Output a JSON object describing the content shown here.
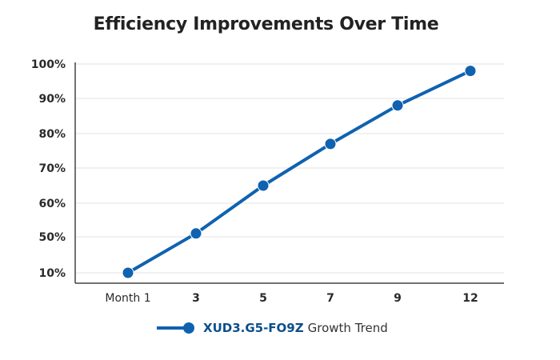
{
  "chart_data": {
    "type": "line",
    "title": "Efficiency Improvements Over Time",
    "categories": [
      "Month 1",
      "3",
      "5",
      "7",
      "9",
      "12"
    ],
    "y_ticks": [
      "100%",
      "90%",
      "80%",
      "70%",
      "60%",
      "50%",
      "10%"
    ],
    "y_tick_values": [
      100,
      90,
      80,
      70,
      60,
      50,
      10
    ],
    "series": [
      {
        "name": "XUD3.G5-FO9Z Growth Trend",
        "values": [
          10,
          51,
          65,
          77,
          88,
          98
        ],
        "color": "#0f62b0"
      }
    ],
    "legend": {
      "key": "XUD3.G5-FO9Z",
      "label": "Growth Trend",
      "position": "bottom"
    },
    "grid": true,
    "xlabel": "",
    "ylabel": ""
  }
}
